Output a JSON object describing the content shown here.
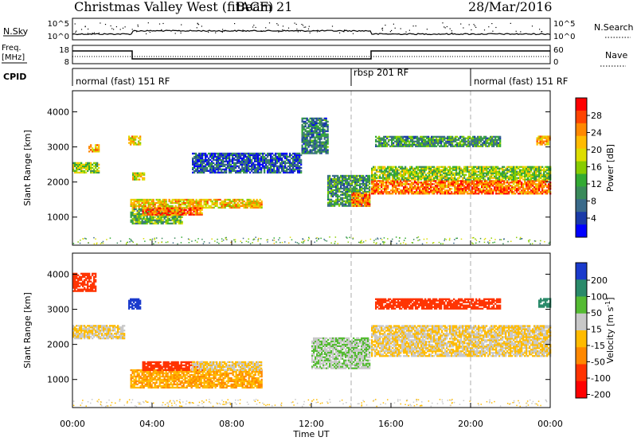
{
  "header": {
    "title": "Christmas Valley West (fitACF)",
    "beam": "Beam 21",
    "date": "28/Mar/2016"
  },
  "nsky_panel": {
    "left_label": "N.Sky",
    "left_ticks": [
      "10^5",
      "10^0"
    ],
    "right_ticks": [
      "10^5",
      "10^0"
    ],
    "right_label": "N.Search"
  },
  "freq_panel": {
    "left_label_line1": "Freq.",
    "left_label_line2": "[MHz]",
    "left_ticks": [
      "18",
      "8"
    ],
    "right_ticks": [
      "60",
      "0"
    ],
    "right_label": "Nave"
  },
  "cpid": {
    "label": "CPID",
    "segments": [
      {
        "label": "normal (fast) 151 RF",
        "start_hour": 0
      },
      {
        "label": "rbsp 201 RF",
        "start_hour": 14
      },
      {
        "label": "normal (fast) 151 RF",
        "start_hour": 20
      }
    ]
  },
  "power_colorbar": {
    "label": "Power [dB]",
    "ticks": [
      "28",
      "24",
      "20",
      "16",
      "12",
      "8",
      "4"
    ],
    "colors": [
      "#ff0000",
      "#ff4400",
      "#ff8800",
      "#ffbb00",
      "#dddd00",
      "#88cc00",
      "#33aa33",
      "#3a8a5a",
      "#3a6a8a",
      "#1a3aa8",
      "#0000ff"
    ]
  },
  "velocity_colorbar": {
    "label": "Velocity [m s",
    "label_sup": "-1",
    "label_end": "]",
    "ticks": [
      "200",
      "100",
      "50",
      "15",
      "-15",
      "-50",
      "-100",
      "-200"
    ],
    "colors": [
      "#1a3acc",
      "#2a8a6a",
      "#55bb33",
      "#c8c8c8",
      "#ffbb00",
      "#ff8800",
      "#ff3300",
      "#ff0000"
    ]
  },
  "chart_data": [
    {
      "type": "heatmap",
      "name": "power",
      "ylabel": "Slant Range [km]",
      "yticks": [
        1000,
        2000,
        3000,
        4000
      ],
      "ylim": [
        200,
        4600
      ],
      "xlim_hours": [
        0,
        24
      ],
      "blobs": [
        {
          "t0": 0.0,
          "t1": 1.3,
          "r0": 2250,
          "r1": 2550,
          "v": 16
        },
        {
          "t0": 0.8,
          "t1": 1.3,
          "r0": 2850,
          "r1": 3050,
          "v": 22
        },
        {
          "t0": 2.8,
          "t1": 3.4,
          "r0": 3050,
          "r1": 3300,
          "v": 20
        },
        {
          "t0": 3.0,
          "t1": 3.6,
          "r0": 2050,
          "r1": 2250,
          "v": 18
        },
        {
          "t0": 2.9,
          "t1": 9.5,
          "r0": 1250,
          "r1": 1500,
          "v": 20
        },
        {
          "t0": 2.9,
          "t1": 5.5,
          "r0": 800,
          "r1": 1250,
          "v": 14
        },
        {
          "t0": 3.5,
          "t1": 6.5,
          "r0": 1050,
          "r1": 1250,
          "v": 24
        },
        {
          "t0": 6.0,
          "t1": 11.5,
          "r0": 2250,
          "r1": 2800,
          "v": 8
        },
        {
          "t0": 11.5,
          "t1": 12.8,
          "r0": 2800,
          "r1": 3800,
          "v": 10
        },
        {
          "t0": 12.8,
          "t1": 14.9,
          "r0": 1300,
          "r1": 2200,
          "v": 12
        },
        {
          "t0": 14.0,
          "t1": 14.9,
          "r0": 1300,
          "r1": 1700,
          "v": 24
        },
        {
          "t0": 15.0,
          "t1": 24.0,
          "r0": 1650,
          "r1": 2050,
          "v": 24
        },
        {
          "t0": 15.0,
          "t1": 24.0,
          "r0": 2050,
          "r1": 2450,
          "v": 16
        },
        {
          "t0": 15.2,
          "t1": 21.5,
          "r0": 3000,
          "r1": 3300,
          "v": 12
        },
        {
          "t0": 23.3,
          "t1": 24.0,
          "r0": 3050,
          "r1": 3300,
          "v": 22
        }
      ]
    },
    {
      "type": "heatmap",
      "name": "velocity",
      "ylabel": "Slant Range [km]",
      "yticks": [
        1000,
        2000,
        3000,
        4000
      ],
      "ylim": [
        200,
        4600
      ],
      "xlim_hours": [
        0,
        24
      ],
      "xticks": [
        "00:00",
        "04:00",
        "08:00",
        "12:00",
        "16:00",
        "20:00",
        "00:00"
      ],
      "xlabel": "Time UT",
      "blobs": [
        {
          "t0": 0.0,
          "t1": 1.2,
          "r0": 3500,
          "r1": 4000,
          "v": -100
        },
        {
          "t0": 2.8,
          "t1": 3.4,
          "r0": 3000,
          "r1": 3300,
          "v": 200
        },
        {
          "t0": 0.0,
          "t1": 2.6,
          "r0": 2150,
          "r1": 2550,
          "v": 0
        },
        {
          "t0": 2.9,
          "t1": 9.5,
          "r0": 750,
          "r1": 1250,
          "v": -30
        },
        {
          "t0": 3.5,
          "t1": 6.5,
          "r0": 1250,
          "r1": 1500,
          "v": -100
        },
        {
          "t0": 6.0,
          "t1": 9.5,
          "r0": 1250,
          "r1": 1500,
          "v": 0
        },
        {
          "t0": 12.0,
          "t1": 14.9,
          "r0": 1300,
          "r1": 2200,
          "v": 30
        },
        {
          "t0": 15.0,
          "t1": 24.0,
          "r0": 1650,
          "r1": 2550,
          "v": 0
        },
        {
          "t0": 15.2,
          "t1": 21.5,
          "r0": 3000,
          "r1": 3300,
          "v": -100
        },
        {
          "t0": 23.4,
          "t1": 24.0,
          "r0": 3050,
          "r1": 3300,
          "v": 100
        }
      ]
    }
  ]
}
